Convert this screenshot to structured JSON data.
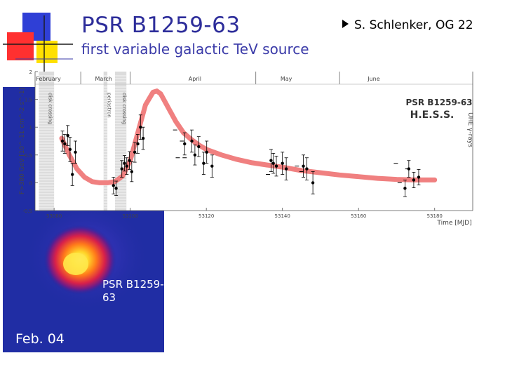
{
  "slide": {
    "title": "PSR B1259-63",
    "subtitle": "first variable galactic TeV source",
    "byline": "S. Schlenker, OG 22"
  },
  "skymap": {
    "source_label": "PSR B1259-63",
    "date_label": "Feb. 04",
    "colors": {
      "background": "#1e2a9e",
      "core": "#ffe23a",
      "mid": "#ff6a18",
      "outer": "#cc1a4e"
    }
  },
  "chart_data": {
    "type": "scatter",
    "experiment_label": "H.E.S.S.",
    "source_label": "PSR B1259-63",
    "ylabel": "F>380 GeV [10^-11 cm^-2 s^-1]",
    "xlabel": "Time [MJD]",
    "right_label": "UHE γ-rays",
    "xlim": [
      53075,
      53190
    ],
    "ylim": [
      -0.5,
      2
    ],
    "xticks": [
      53080,
      53100,
      53120,
      53140,
      53160,
      53180
    ],
    "xtick_labels": [
      "53080",
      "53100",
      "53120",
      "53140",
      "53160",
      "53180"
    ],
    "yticks": [
      -0.5,
      0,
      0.5,
      1,
      1.5,
      2
    ],
    "ytick_labels": [
      "-0.5",
      "0",
      "0.5",
      "1",
      "1.5",
      "2"
    ],
    "month_labels": [
      {
        "label": "February",
        "x": 53078.5
      },
      {
        "label": "March",
        "x": 53093
      },
      {
        "label": "April",
        "x": 53117
      },
      {
        "label": "May",
        "x": 53141
      },
      {
        "label": "June",
        "x": 53164
      }
    ],
    "month_boundaries": [
      53087,
      53100,
      53133,
      53155
    ],
    "shaded_bands": [
      {
        "label": "disk crossing",
        "x0": 53076,
        "x1": 53080
      },
      {
        "label": "periastron",
        "x0": 53093,
        "x1": 53094
      },
      {
        "label": "disk crossing",
        "x0": 53096,
        "x1": 53099
      }
    ],
    "points": [
      {
        "x": 53082.2,
        "y": 0.75,
        "err": 0.18
      },
      {
        "x": 53082.8,
        "y": 0.7,
        "err": 0.17
      },
      {
        "x": 53083.6,
        "y": 0.85,
        "err": 0.18
      },
      {
        "x": 53084.2,
        "y": 0.6,
        "err": 0.22
      },
      {
        "x": 53084.8,
        "y": 0.15,
        "err": 0.2
      },
      {
        "x": 53085.6,
        "y": 0.55,
        "err": 0.2
      },
      {
        "x": 53095.6,
        "y": -0.05,
        "err": 0.15
      },
      {
        "x": 53096.3,
        "y": -0.1,
        "err": 0.13
      },
      {
        "x": 53097.8,
        "y": 0.25,
        "err": 0.15
      },
      {
        "x": 53098.5,
        "y": 0.35,
        "err": 0.14
      },
      {
        "x": 53099.1,
        "y": 0.3,
        "err": 0.15
      },
      {
        "x": 53099.8,
        "y": 0.4,
        "err": 0.16
      },
      {
        "x": 53100.4,
        "y": 0.2,
        "err": 0.18
      },
      {
        "x": 53101.2,
        "y": 0.55,
        "err": 0.18
      },
      {
        "x": 53102.0,
        "y": 0.7,
        "err": 0.17
      },
      {
        "x": 53102.7,
        "y": 1.0,
        "err": 0.22
      },
      {
        "x": 53103.4,
        "y": 0.8,
        "err": 0.2
      },
      {
        "x": 53114.3,
        "y": 0.7,
        "err": 0.2
      },
      {
        "x": 53116.2,
        "y": 0.75,
        "err": 0.2
      },
      {
        "x": 53117.0,
        "y": 0.5,
        "err": 0.18
      },
      {
        "x": 53118.0,
        "y": 0.65,
        "err": 0.18
      },
      {
        "x": 53119.3,
        "y": 0.35,
        "err": 0.2
      },
      {
        "x": 53120.1,
        "y": 0.55,
        "err": 0.2
      },
      {
        "x": 53121.5,
        "y": 0.3,
        "err": 0.2
      },
      {
        "x": 53137.0,
        "y": 0.4,
        "err": 0.2
      },
      {
        "x": 53137.6,
        "y": 0.35,
        "err": 0.18
      },
      {
        "x": 53138.4,
        "y": 0.3,
        "err": 0.18
      },
      {
        "x": 53140.0,
        "y": 0.35,
        "err": 0.2
      },
      {
        "x": 53141.0,
        "y": 0.25,
        "err": 0.2
      },
      {
        "x": 53145.5,
        "y": 0.3,
        "err": 0.2
      },
      {
        "x": 53146.4,
        "y": 0.25,
        "err": 0.2
      },
      {
        "x": 53148.0,
        "y": 0.0,
        "err": 0.2
      },
      {
        "x": 53172.2,
        "y": -0.1,
        "err": 0.15
      },
      {
        "x": 53173.2,
        "y": 0.25,
        "err": 0.15
      },
      {
        "x": 53174.5,
        "y": 0.05,
        "err": 0.14
      },
      {
        "x": 53175.8,
        "y": 0.1,
        "err": 0.14
      }
    ],
    "upper_limits": [
      {
        "x": 53111.8,
        "y": 0.95
      },
      {
        "x": 53112.5,
        "y": 0.45
      },
      {
        "x": 53113.6,
        "y": 0.75
      },
      {
        "x": 53114.3,
        "y": 0.45
      },
      {
        "x": 53136.2,
        "y": 0.15
      },
      {
        "x": 53143.8,
        "y": 0.3
      },
      {
        "x": 53145.0,
        "y": 0.2
      },
      {
        "x": 53169.8,
        "y": 0.35
      },
      {
        "x": 53170.8,
        "y": 0.0
      },
      {
        "x": 53172.8,
        "y": 0.25
      }
    ],
    "model_curve": {
      "x": [
        53082,
        53084,
        53086,
        53088,
        53090,
        53092,
        53094,
        53096,
        53098,
        53100,
        53102,
        53104,
        53106,
        53107,
        53108,
        53110,
        53112,
        53114,
        53116,
        53118,
        53120,
        53124,
        53128,
        53132,
        53136,
        53140,
        53145,
        53150,
        53155,
        53160,
        53165,
        53170,
        53175,
        53180
      ],
      "y": [
        0.8,
        0.5,
        0.25,
        0.1,
        0.02,
        0.0,
        0.0,
        0.02,
        0.12,
        0.4,
        0.9,
        1.4,
        1.63,
        1.65,
        1.6,
        1.35,
        1.1,
        0.9,
        0.78,
        0.68,
        0.6,
        0.5,
        0.42,
        0.36,
        0.32,
        0.28,
        0.22,
        0.18,
        0.14,
        0.11,
        0.08,
        0.06,
        0.05,
        0.05
      ]
    },
    "colors": {
      "curve": "#f08080",
      "points": "#000000",
      "bands": "#dcdcdc"
    }
  }
}
